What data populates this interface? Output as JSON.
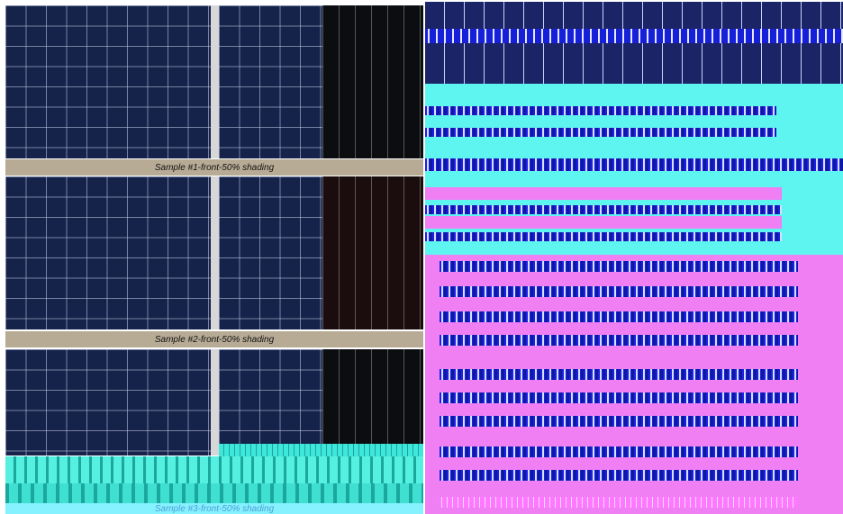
{
  "captions": {
    "sample1": "Sample #1-front-50% shading",
    "sample2": "Sample #2-front-50% shading",
    "sample3": "Sample #3-front-50% shading"
  },
  "colors": {
    "panel": "#15224a",
    "caption_bar": "#b7ab95",
    "corrupt_cyan": "#5ef4f0",
    "corrupt_magenta": "#f07ff4",
    "corrupt_blue": "#1e1ee6"
  }
}
